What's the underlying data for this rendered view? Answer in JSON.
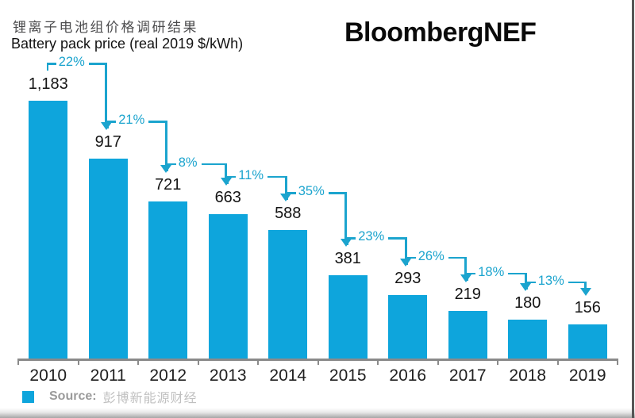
{
  "header": {
    "title_zh": "锂离子电池组价格调研结果",
    "title_en": "Battery pack price (real 2019 $/kWh)",
    "brand": "BloombergNEF"
  },
  "chart_data": {
    "type": "bar",
    "title": "Battery pack price (real 2019 $/kWh)",
    "subtitle_zh": "锂离子电池组价格调研结果",
    "categories": [
      "2010",
      "2011",
      "2012",
      "2013",
      "2014",
      "2015",
      "2016",
      "2017",
      "2018",
      "2019"
    ],
    "values": [
      1183,
      917,
      721,
      663,
      588,
      381,
      293,
      219,
      180,
      156
    ],
    "value_labels": [
      "1,183",
      "917",
      "721",
      "663",
      "588",
      "381",
      "293",
      "219",
      "180",
      "156"
    ],
    "pct_change_labels": [
      "22%",
      "21%",
      "8%",
      "11%",
      "35%",
      "23%",
      "26%",
      "18%",
      "13%"
    ],
    "xlabel": "",
    "ylabel": "real 2019 $/kWh",
    "ylim": [
      0,
      1250
    ],
    "grid": false,
    "legend_position": "none",
    "colors": {
      "bar": "#0ea5dc",
      "annotation": "#1ba4ce",
      "axis": "#8a8a8a",
      "value_text": "#151515",
      "year_text": "#202020"
    }
  },
  "footer": {
    "source_label": "Source:",
    "source_text": "彭博新能源财经"
  }
}
